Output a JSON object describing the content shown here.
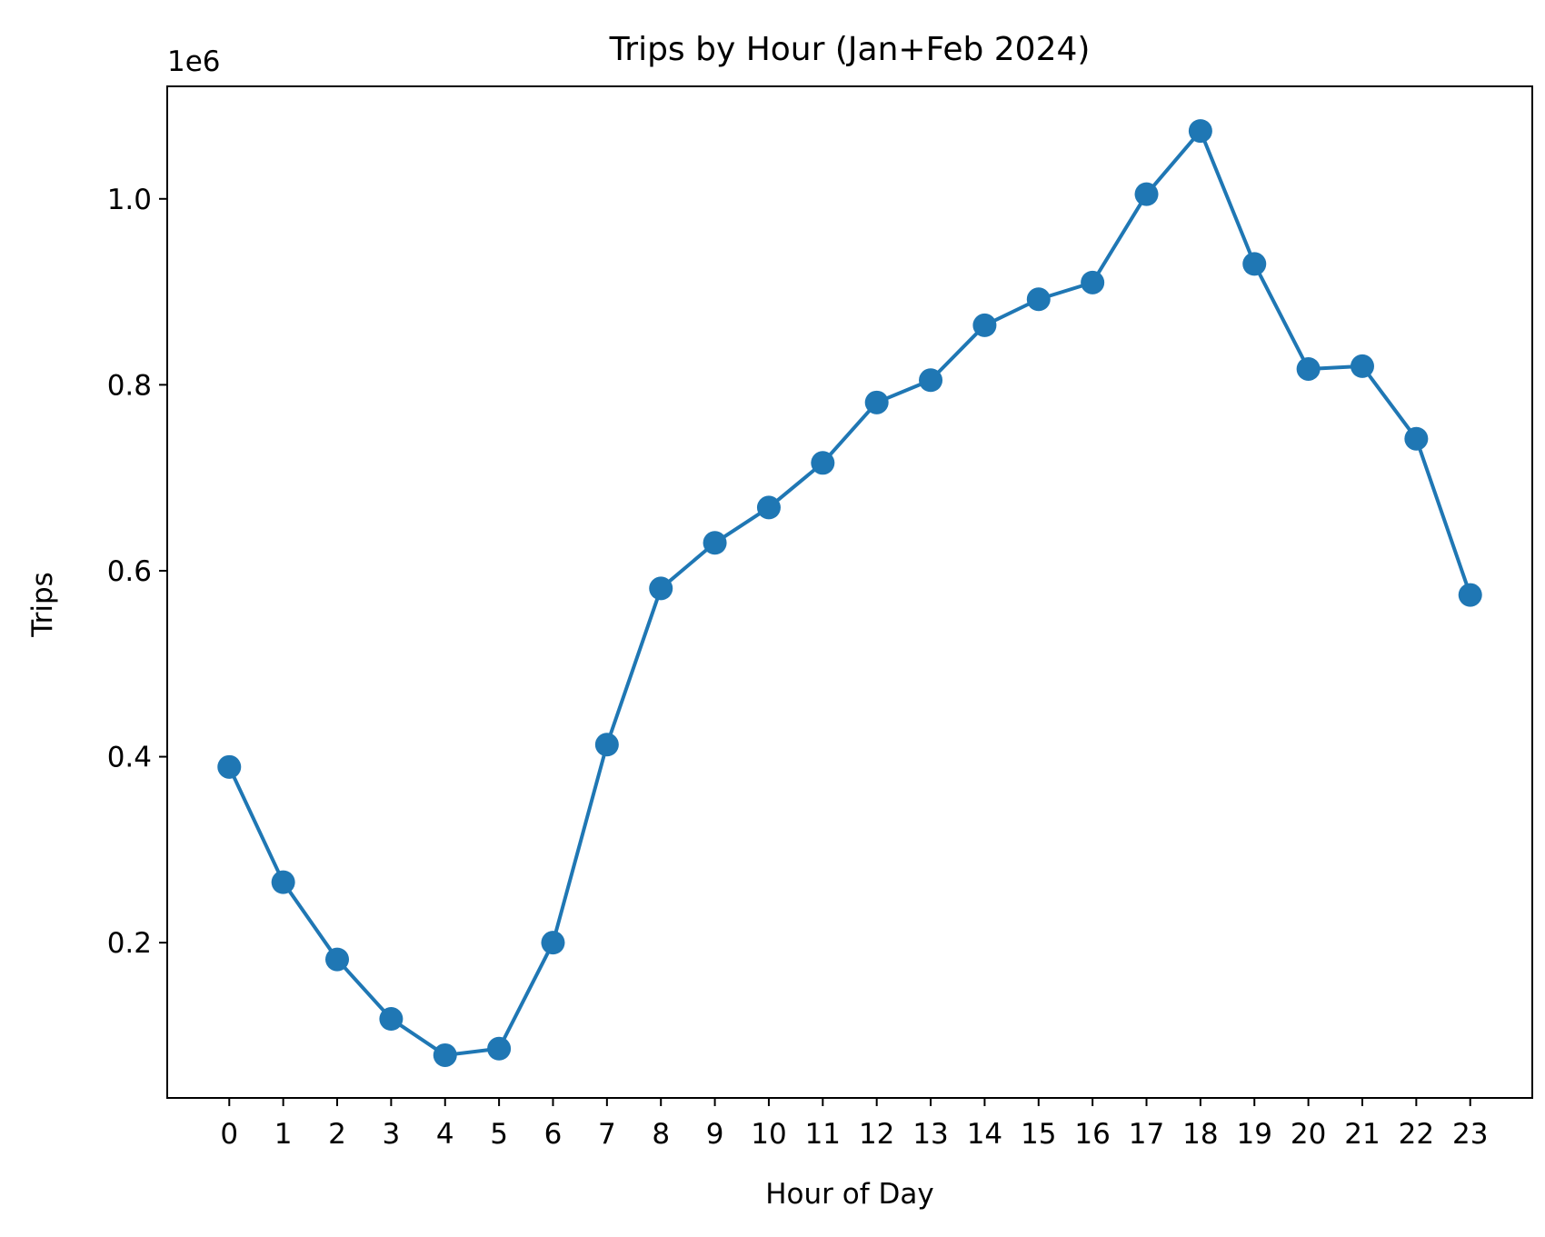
{
  "chart_data": {
    "type": "line",
    "title": "Trips by Hour (Jan+Feb 2024)",
    "xlabel": "Hour of Day",
    "ylabel": "Trips",
    "y_offset_label": "1e6",
    "categories": [
      "0",
      "1",
      "2",
      "3",
      "4",
      "5",
      "6",
      "7",
      "8",
      "9",
      "10",
      "11",
      "12",
      "13",
      "14",
      "15",
      "16",
      "17",
      "18",
      "19",
      "20",
      "21",
      "22",
      "23"
    ],
    "x": [
      0,
      1,
      2,
      3,
      4,
      5,
      6,
      7,
      8,
      9,
      10,
      11,
      12,
      13,
      14,
      15,
      16,
      17,
      18,
      19,
      20,
      21,
      22,
      23
    ],
    "series": [
      {
        "values": [
          389000,
          265000,
          182000,
          118000,
          79000,
          86000,
          200000,
          413000,
          581000,
          630000,
          668000,
          716000,
          781000,
          805000,
          864000,
          892000,
          910000,
          1005000,
          1073000,
          930000,
          817000,
          820000,
          742000,
          574000
        ]
      }
    ],
    "yticks": [
      0.2,
      0.4,
      0.6,
      0.8,
      1.0
    ],
    "ytick_labels": [
      "0.2",
      "0.4",
      "0.6",
      "0.8",
      "1.0"
    ],
    "ylim": [
      33000,
      1121000
    ],
    "xlim": [
      -1.15,
      24.15
    ],
    "grid": false,
    "legend": "none",
    "color": "#1f77b4",
    "marker": "circle"
  }
}
